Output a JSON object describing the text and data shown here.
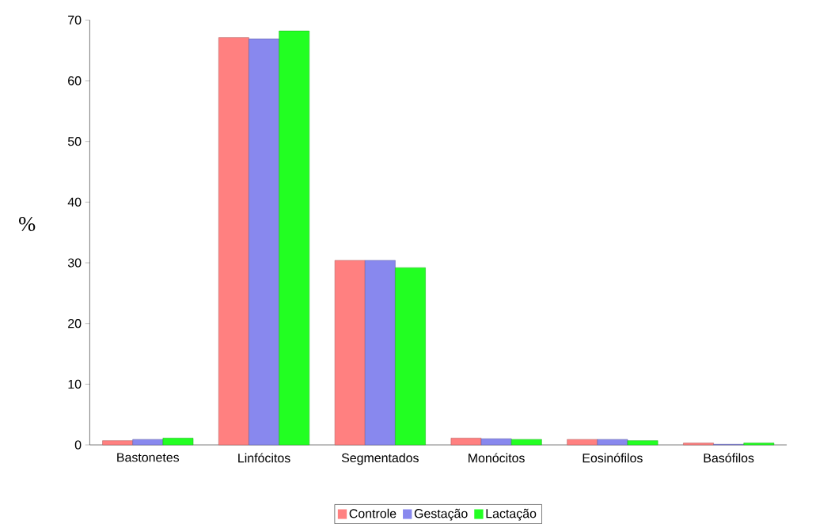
{
  "chart_data": {
    "type": "bar",
    "ylabel": "%",
    "categories": [
      "Bastonetes",
      "Linfócitos",
      "Segmentados",
      "Monócitos",
      "Eosinófilos",
      "Basófilos"
    ],
    "series": [
      {
        "name": "Controle",
        "color": "#ff8080",
        "values": [
          0.7,
          67.1,
          30.4,
          1.1,
          0.9,
          0.3
        ]
      },
      {
        "name": "Gestação",
        "color": "#8888ee",
        "values": [
          0.9,
          66.9,
          30.4,
          1.0,
          0.9,
          0.1
        ]
      },
      {
        "name": "Lactação",
        "color": "#22ff22",
        "values": [
          1.1,
          68.2,
          29.2,
          0.9,
          0.7,
          0.3
        ]
      }
    ],
    "ylim": [
      0,
      70
    ],
    "yticks": [
      0,
      10,
      20,
      30,
      40,
      50,
      60,
      70
    ],
    "grid": false,
    "legend": "bottom"
  }
}
